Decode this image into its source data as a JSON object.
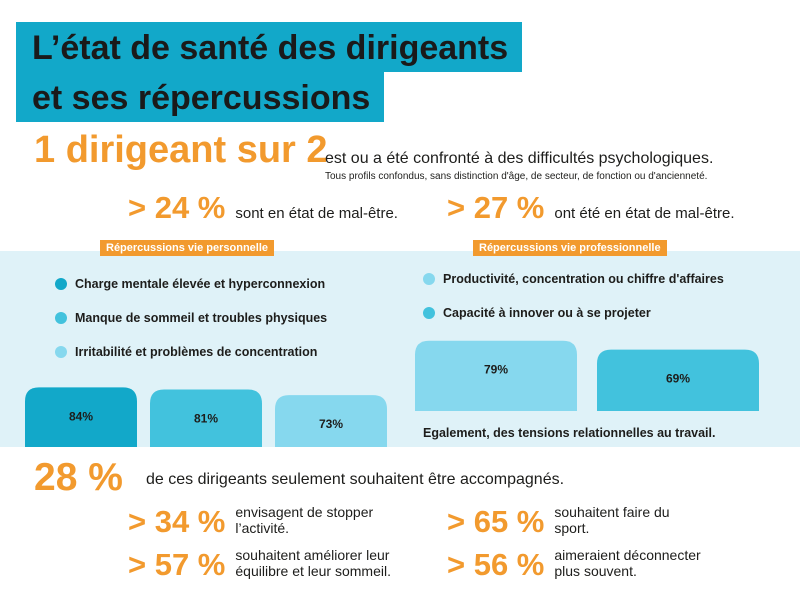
{
  "title": {
    "line1": "L’état de santé des dirigeants",
    "line2": "et ses répercussions"
  },
  "headline": {
    "stat": "1 dirigeant sur 2",
    "text": "est ou a été confronté à des difficultés psychologiques.",
    "note": "Tous profils confondus, sans distinction d'âge, de secteur, de fonction ou d'ancienneté."
  },
  "stats_row": [
    {
      "value": "> 24 %",
      "text": "sont en état de mal-être."
    },
    {
      "value": "> 27 %",
      "text": "ont été en état de mal-être."
    }
  ],
  "colors": {
    "dark": "#12a8c9",
    "mid": "#42c2dd",
    "light": "#86d8ee",
    "accent": "#f29a2e",
    "panel": "#dff2f8"
  },
  "chart_data": [
    {
      "type": "bar",
      "title": "Répercussions vie personnelle",
      "categories": [
        "Charge mentale élevée et hyperconnexion",
        "Manque de sommeil et troubles physiques",
        "Irritabilité et problèmes de concentration"
      ],
      "values": [
        84,
        81,
        73
      ],
      "labels": [
        "84%",
        "81%",
        "73%"
      ],
      "colors": [
        "#12a8c9",
        "#42c2dd",
        "#86d8ee"
      ],
      "ylim": [
        0,
        100
      ]
    },
    {
      "type": "bar",
      "title": "Répercussions vie professionnelle",
      "categories": [
        "Productivité, concentration ou chiffre d'affaires",
        "Capacité à innover ou à se projeter"
      ],
      "values": [
        79,
        69
      ],
      "labels": [
        "79%",
        "69%"
      ],
      "colors": [
        "#86d8ee",
        "#42c2dd"
      ],
      "ylim": [
        0,
        100
      ],
      "note": "Egalement, des tensions relationnelles au travail."
    }
  ],
  "support": {
    "stat": "28 %",
    "text": "de ces dirigeants seulement souhaitent être accompagnés.",
    "items": [
      {
        "value": "> 34 %",
        "text": "envisagent de stopper l’activité."
      },
      {
        "value": "> 65 %",
        "text": "souhaitent faire du sport."
      },
      {
        "value": "> 57 %",
        "text": "souhaitent améliorer leur équilibre et leur sommeil."
      },
      {
        "value": "> 56 %",
        "text": "aimeraient déconnecter plus souvent."
      }
    ]
  }
}
